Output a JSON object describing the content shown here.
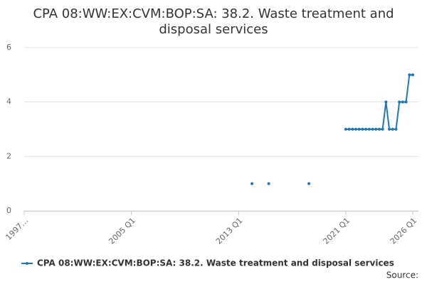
{
  "chart_data": {
    "type": "line",
    "title": "CPA 08:WW:EX:CVM:BOP:SA: 38.2. Waste treatment and disposal services",
    "source": "Source:",
    "x": [
      2014,
      2014.25,
      2015.25,
      2015.5,
      2018.25,
      2018.5,
      2021,
      2021.25,
      2021.5,
      2021.75,
      2022,
      2022.25,
      2022.5,
      2022.75,
      2023,
      2023.25,
      2023.5,
      2023.75,
      2024,
      2024.25,
      2024.5,
      2024.75,
      2025,
      2025.25,
      2025.5,
      2025.75,
      2026
    ],
    "series": [
      {
        "name": "CPA 08:WW:EX:CVM:BOP:SA: 38.2. Waste treatment and disposal services",
        "color": "#1f78b4",
        "values": [
          1,
          null,
          1,
          null,
          1,
          null,
          3,
          3,
          3,
          3,
          3,
          3,
          3,
          3,
          3,
          3,
          3,
          3,
          4,
          3,
          3,
          3,
          4,
          4,
          4,
          5,
          5
        ]
      }
    ],
    "xlim": [
      1997,
      2026
    ],
    "xticks": [
      {
        "value": 1997,
        "label": "1997…"
      },
      {
        "value": 2005,
        "label": "2005 Q1"
      },
      {
        "value": 2013,
        "label": "2013 Q1"
      },
      {
        "value": 2021,
        "label": "2021 Q1"
      },
      {
        "value": 2026,
        "label": "2026 Q1"
      }
    ],
    "ylim": [
      0,
      6
    ],
    "yticks": [
      0,
      2,
      4,
      6
    ],
    "grid": true
  }
}
